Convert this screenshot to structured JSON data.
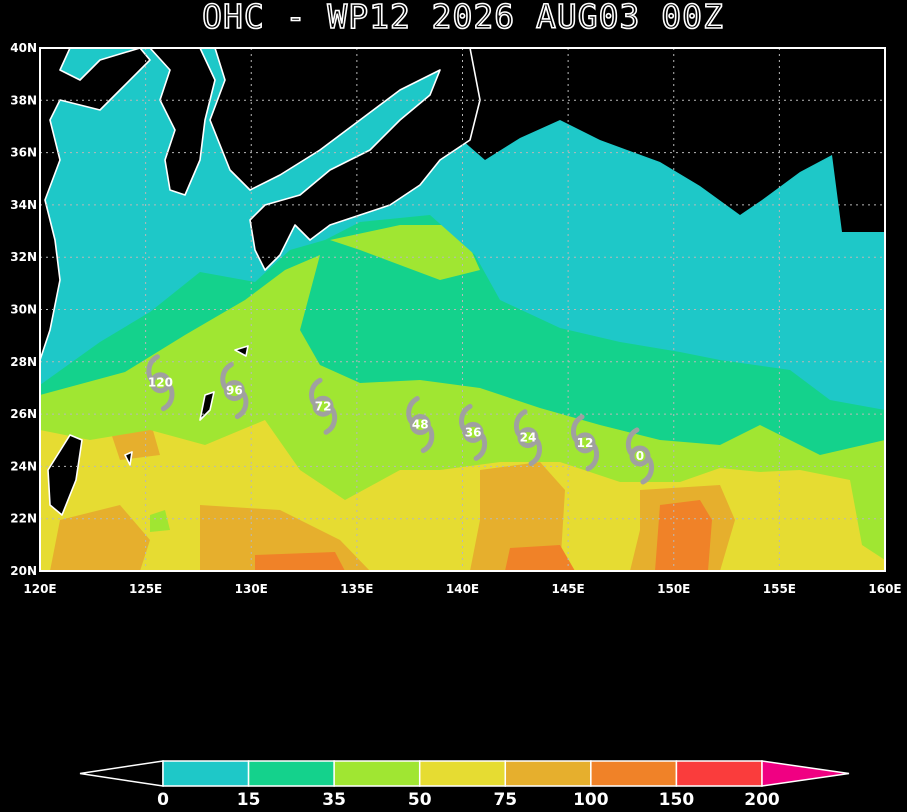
{
  "title": "OHC - WP12 2026 AUG03 00Z",
  "map": {
    "lon_range": [
      120,
      160
    ],
    "lat_range": [
      20,
      40
    ],
    "lon_ticks": [
      {
        "value": 120,
        "label": "120E"
      },
      {
        "value": 125,
        "label": "125E"
      },
      {
        "value": 130,
        "label": "130E"
      },
      {
        "value": 135,
        "label": "135E"
      },
      {
        "value": 140,
        "label": "140E"
      },
      {
        "value": 145,
        "label": "145E"
      },
      {
        "value": 150,
        "label": "150E"
      },
      {
        "value": 155,
        "label": "155E"
      },
      {
        "value": 160,
        "label": "160E"
      }
    ],
    "lat_ticks": [
      {
        "value": 20,
        "label": "20N"
      },
      {
        "value": 22,
        "label": "22N"
      },
      {
        "value": 24,
        "label": "24N"
      },
      {
        "value": 26,
        "label": "26N"
      },
      {
        "value": 28,
        "label": "28N"
      },
      {
        "value": 30,
        "label": "30N"
      },
      {
        "value": 32,
        "label": "32N"
      },
      {
        "value": 34,
        "label": "34N"
      },
      {
        "value": 36,
        "label": "36N"
      },
      {
        "value": 38,
        "label": "38N"
      },
      {
        "value": 40,
        "label": "40N"
      }
    ],
    "track": [
      {
        "label": 120,
        "lon": 125.7,
        "lat": 27.2
      },
      {
        "label": 96,
        "lon": 129.2,
        "lat": 26.9
      },
      {
        "label": 72,
        "lon": 133.4,
        "lat": 26.3
      },
      {
        "label": 48,
        "lon": 138.0,
        "lat": 25.6
      },
      {
        "label": 36,
        "lon": 140.5,
        "lat": 25.3
      },
      {
        "label": 24,
        "lon": 143.1,
        "lat": 25.1
      },
      {
        "label": 12,
        "lon": 145.8,
        "lat": 24.9
      },
      {
        "label": 0,
        "lon": 148.4,
        "lat": 24.4
      }
    ]
  },
  "colorbar": {
    "bins": [
      0,
      15,
      35,
      50,
      75,
      100,
      150,
      200
    ],
    "colors": [
      "#1ec8c8",
      "#14d28c",
      "#a0e632",
      "#e6dc32",
      "#e6af2d",
      "#f08228",
      "#fa3c3c"
    ],
    "over_color": "#f00082"
  }
}
